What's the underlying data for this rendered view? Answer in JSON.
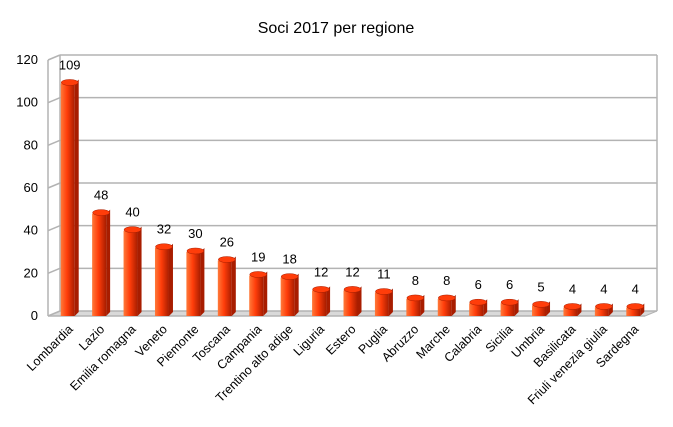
{
  "chart_data": {
    "type": "bar",
    "title": "Soci 2017 per regione",
    "categories": [
      "Lombardia",
      "Lazio",
      "Emilia romagna",
      "Veneto",
      "Piemonte",
      "Toscana",
      "Campania",
      "Trentino alto adige",
      "Liguria",
      "Estero",
      "Puglia",
      "Abruzzo",
      "Marche",
      "Calabria",
      "Sicilia",
      "Umbria",
      "Basilicata",
      "Friuli venezia giulia",
      "Sardegna"
    ],
    "values": [
      109,
      48,
      40,
      32,
      30,
      26,
      19,
      18,
      12,
      12,
      11,
      8,
      8,
      6,
      6,
      5,
      4,
      4,
      4
    ],
    "ylim": [
      0,
      120
    ],
    "yticks": [
      0,
      20,
      40,
      60,
      80,
      100,
      120
    ],
    "grid": true,
    "legend": "none",
    "bar_color": "#ff3d0a",
    "bar_shadow_color": "#a81d00",
    "bar_highlight_color": "#ff7a3a"
  }
}
